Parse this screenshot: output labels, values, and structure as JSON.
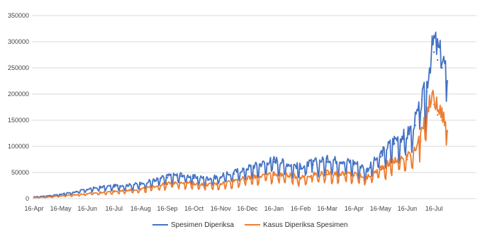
{
  "chart_data": {
    "type": "line",
    "title": "",
    "xlabel": "",
    "ylabel": "",
    "ylim": [
      0,
      350000
    ],
    "yticks": [
      0,
      50000,
      100000,
      150000,
      200000,
      250000,
      300000,
      350000
    ],
    "yticks_labels": [
      "0",
      "50000",
      "100000",
      "150000",
      "200000",
      "250000",
      "300000",
      "350000"
    ],
    "x_tick_labels": [
      "16-Apr",
      "16-May",
      "16-Jun",
      "16-Jul",
      "16-Aug",
      "16-Sep",
      "16-Oct",
      "16-Nov",
      "16-Dec",
      "16-Jan",
      "16-Feb",
      "16-Mar",
      "16-Apr",
      "16-May",
      "16-Jun",
      "16-Jul"
    ],
    "grid": true,
    "legend_position": "bottom",
    "series": [
      {
        "name": "Spesimen Diperiksa",
        "color": "#4472C4",
        "x": [
          "16-Apr",
          "1-May",
          "16-May",
          "1-Jun",
          "16-Jun",
          "1-Jul",
          "16-Jul",
          "1-Aug",
          "16-Aug",
          "1-Sep",
          "16-Sep",
          "1-Oct",
          "16-Oct",
          "1-Nov",
          "16-Nov",
          "1-Dec",
          "16-Dec",
          "1-Jan",
          "16-Jan",
          "1-Feb",
          "16-Feb",
          "1-Mar",
          "16-Mar",
          "1-Apr",
          "16-Apr",
          "1-May",
          "16-May",
          "1-Jun",
          "16-Jun",
          "25-Jun",
          "1-Jul",
          "8-Jul",
          "12-Jul",
          "16-Jul",
          "20-Jul",
          "25-Jul",
          "31-Jul"
        ],
        "values": [
          3000,
          5000,
          8000,
          12000,
          17000,
          21000,
          23000,
          24000,
          27000,
          33000,
          40000,
          43000,
          39000,
          36000,
          40000,
          47000,
          55000,
          62000,
          70000,
          62000,
          57000,
          65000,
          70000,
          68000,
          65000,
          52000,
          80000,
          105000,
          115000,
          140000,
          165000,
          205000,
          245000,
          280000,
          265000,
          250000,
          225000
        ]
      },
      {
        "name": "Kasus Diperiksa Spesimen",
        "color": "#ED7D31",
        "x": [
          "16-Apr",
          "1-May",
          "16-May",
          "1-Jun",
          "16-Jun",
          "1-Jul",
          "16-Jul",
          "1-Aug",
          "16-Aug",
          "1-Sep",
          "16-Sep",
          "1-Oct",
          "16-Oct",
          "1-Nov",
          "16-Nov",
          "1-Dec",
          "16-Dec",
          "1-Jan",
          "16-Jan",
          "1-Feb",
          "16-Feb",
          "1-Mar",
          "16-Mar",
          "1-Apr",
          "16-Apr",
          "1-May",
          "16-May",
          "1-Jun",
          "16-Jun",
          "25-Jun",
          "1-Jul",
          "8-Jul",
          "12-Jul",
          "16-Jul",
          "20-Jul",
          "25-Jul",
          "31-Jul"
        ],
        "values": [
          2000,
          3000,
          5000,
          7000,
          9000,
          11000,
          13000,
          15000,
          17000,
          22000,
          27000,
          30000,
          27000,
          25000,
          27000,
          33000,
          37000,
          41000,
          45000,
          42000,
          38000,
          43000,
          46000,
          45000,
          44000,
          38000,
          55000,
          68000,
          75000,
          92000,
          110000,
          150000,
          175000,
          180000,
          160000,
          150000,
          130000
        ]
      }
    ]
  }
}
